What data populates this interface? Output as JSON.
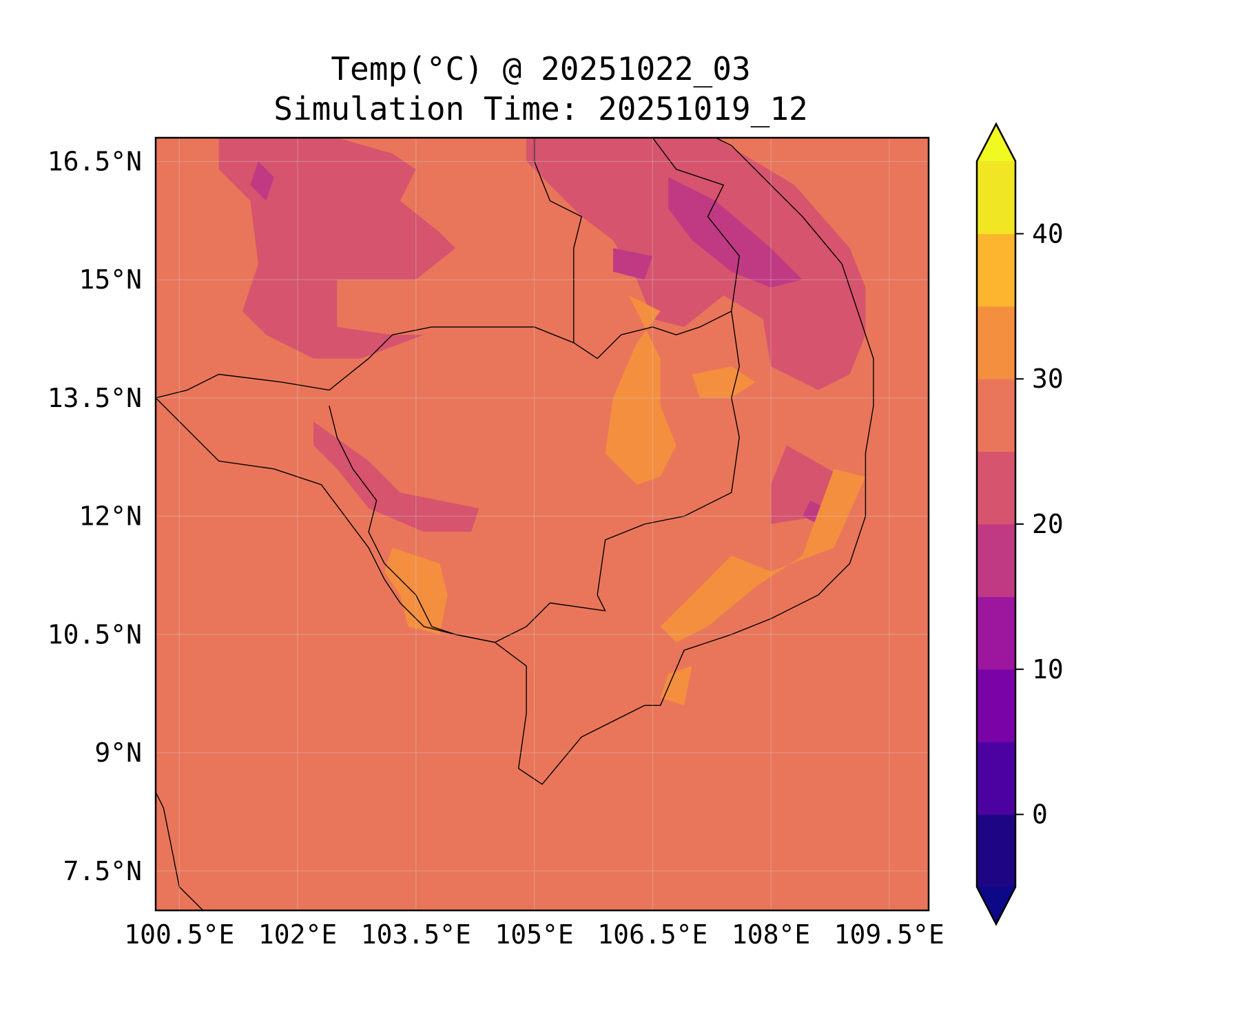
{
  "title": {
    "line1": "Temp(°C) @ 20251022_03",
    "line2": "Simulation Time: 20251019_12"
  },
  "map": {
    "lon_range": [
      100.2,
      110.0
    ],
    "lat_range": [
      7.0,
      16.8
    ],
    "lon_ticks": [
      {
        "value": 100.5,
        "label": "100.5°E"
      },
      {
        "value": 102.0,
        "label": "102°E"
      },
      {
        "value": 103.5,
        "label": "103.5°E"
      },
      {
        "value": 105.0,
        "label": "105°E"
      },
      {
        "value": 106.5,
        "label": "106.5°E"
      },
      {
        "value": 108.0,
        "label": "108°E"
      },
      {
        "value": 109.5,
        "label": "109.5°E"
      }
    ],
    "lat_ticks": [
      {
        "value": 16.5,
        "label": "16.5°N"
      },
      {
        "value": 15.0,
        "label": "15°N"
      },
      {
        "value": 13.5,
        "label": "13.5°N"
      },
      {
        "value": 12.0,
        "label": "12°N"
      },
      {
        "value": 10.5,
        "label": "10.5°N"
      },
      {
        "value": 9.0,
        "label": "9°N"
      },
      {
        "value": 7.5,
        "label": "7.5°N"
      }
    ],
    "background_level_color": "#e9765a",
    "regions": [
      {
        "level": "20-25",
        "color": "#d6546e",
        "points": [
          [
            101.0,
            16.8
          ],
          [
            102.5,
            16.8
          ],
          [
            103.2,
            16.6
          ],
          [
            103.5,
            16.4
          ],
          [
            103.3,
            16.0
          ],
          [
            103.8,
            15.6
          ],
          [
            104.0,
            15.4
          ],
          [
            103.5,
            15.0
          ],
          [
            102.5,
            15.0
          ],
          [
            102.5,
            14.4
          ],
          [
            103.2,
            14.3
          ],
          [
            103.6,
            14.3
          ],
          [
            102.8,
            14.0
          ],
          [
            102.2,
            14.0
          ],
          [
            101.6,
            14.3
          ],
          [
            101.3,
            14.6
          ],
          [
            101.5,
            15.2
          ],
          [
            101.4,
            16.0
          ],
          [
            101.0,
            16.4
          ]
        ]
      },
      {
        "level": "20-25",
        "color": "#d6546e",
        "points": [
          [
            104.9,
            16.8
          ],
          [
            107.3,
            16.8
          ],
          [
            108.3,
            16.2
          ],
          [
            109.0,
            15.4
          ],
          [
            109.2,
            14.9
          ],
          [
            109.2,
            14.3
          ],
          [
            109.0,
            13.8
          ],
          [
            108.6,
            13.6
          ],
          [
            108.0,
            13.9
          ],
          [
            107.9,
            14.5
          ],
          [
            107.4,
            14.8
          ],
          [
            106.9,
            14.4
          ],
          [
            106.5,
            14.5
          ],
          [
            106.3,
            15.0
          ],
          [
            106.0,
            15.5
          ],
          [
            105.6,
            15.8
          ],
          [
            105.2,
            16.2
          ],
          [
            104.9,
            16.5
          ]
        ]
      },
      {
        "level": "20-25",
        "color": "#d6546e",
        "points": [
          [
            102.2,
            13.2
          ],
          [
            102.9,
            12.7
          ],
          [
            103.3,
            12.3
          ],
          [
            104.3,
            12.1
          ],
          [
            104.2,
            11.8
          ],
          [
            103.6,
            11.8
          ],
          [
            102.9,
            12.1
          ],
          [
            102.5,
            12.6
          ],
          [
            102.2,
            12.9
          ]
        ]
      },
      {
        "level": "20-25",
        "color": "#d6546e",
        "points": [
          [
            108.2,
            12.9
          ],
          [
            108.9,
            12.5
          ],
          [
            108.6,
            12.0
          ],
          [
            108.0,
            11.9
          ],
          [
            108.0,
            12.4
          ]
        ]
      },
      {
        "level": "15-20",
        "color": "#c03a83",
        "points": [
          [
            106.7,
            16.3
          ],
          [
            107.3,
            16.0
          ],
          [
            108.0,
            15.4
          ],
          [
            108.4,
            15.0
          ],
          [
            108.0,
            14.9
          ],
          [
            107.5,
            15.1
          ],
          [
            107.0,
            15.5
          ],
          [
            106.7,
            15.9
          ]
        ]
      },
      {
        "level": "15-20",
        "color": "#c03a83",
        "points": [
          [
            101.5,
            16.5
          ],
          [
            101.7,
            16.3
          ],
          [
            101.6,
            16.0
          ],
          [
            101.4,
            16.2
          ]
        ]
      },
      {
        "level": "15-20",
        "color": "#c03a83",
        "points": [
          [
            106.0,
            15.4
          ],
          [
            106.5,
            15.3
          ],
          [
            106.4,
            15.0
          ],
          [
            106.0,
            15.1
          ]
        ]
      },
      {
        "level": "15-20",
        "color": "#c03a83",
        "points": [
          [
            108.5,
            12.2
          ],
          [
            108.7,
            12.1
          ],
          [
            108.6,
            11.9
          ],
          [
            108.4,
            12.0
          ]
        ]
      },
      {
        "level": "30-35",
        "color": "#f48f3f",
        "points": [
          [
            106.2,
            14.8
          ],
          [
            106.6,
            14.6
          ],
          [
            106.3,
            14.2
          ],
          [
            106.0,
            13.5
          ],
          [
            105.9,
            12.8
          ],
          [
            106.3,
            12.4
          ],
          [
            106.6,
            12.5
          ],
          [
            106.8,
            12.9
          ],
          [
            106.6,
            13.4
          ],
          [
            106.6,
            14.0
          ]
        ]
      },
      {
        "level": "30-35",
        "color": "#f48f3f",
        "points": [
          [
            103.2,
            11.6
          ],
          [
            103.8,
            11.4
          ],
          [
            103.9,
            11.0
          ],
          [
            103.8,
            10.5
          ],
          [
            103.4,
            10.6
          ],
          [
            103.3,
            11.0
          ],
          [
            103.1,
            11.3
          ]
        ]
      },
      {
        "level": "30-35",
        "color": "#f48f3f",
        "points": [
          [
            107.5,
            11.5
          ],
          [
            108.0,
            11.3
          ],
          [
            108.8,
            11.6
          ],
          [
            109.2,
            12.5
          ],
          [
            108.8,
            12.6
          ],
          [
            108.4,
            11.5
          ],
          [
            107.8,
            11.1
          ],
          [
            107.2,
            10.6
          ],
          [
            106.8,
            10.4
          ],
          [
            106.6,
            10.6
          ],
          [
            107.0,
            11.0
          ]
        ]
      },
      {
        "level": "30-35",
        "color": "#f48f3f",
        "points": [
          [
            107.0,
            13.8
          ],
          [
            107.5,
            13.9
          ],
          [
            107.8,
            13.7
          ],
          [
            107.5,
            13.5
          ],
          [
            107.1,
            13.5
          ]
        ]
      },
      {
        "level": "30-35",
        "color": "#f48f3f",
        "points": [
          [
            106.7,
            10.0
          ],
          [
            107.0,
            10.1
          ],
          [
            106.9,
            9.6
          ],
          [
            106.6,
            9.7
          ]
        ]
      }
    ],
    "land_outlines": [
      {
        "name": "cambodia",
        "points": [
          [
            102.4,
            13.6
          ],
          [
            102.9,
            14.0
          ],
          [
            103.2,
            14.3
          ],
          [
            103.7,
            14.4
          ],
          [
            104.4,
            14.4
          ],
          [
            105.0,
            14.4
          ],
          [
            105.5,
            14.2
          ],
          [
            105.8,
            14.0
          ],
          [
            106.1,
            14.3
          ],
          [
            106.5,
            14.4
          ],
          [
            106.8,
            14.3
          ],
          [
            107.1,
            14.4
          ],
          [
            107.5,
            14.6
          ],
          [
            107.6,
            13.9
          ],
          [
            107.5,
            13.5
          ],
          [
            107.6,
            13.0
          ],
          [
            107.5,
            12.3
          ],
          [
            106.9,
            12.0
          ],
          [
            106.4,
            11.9
          ],
          [
            105.9,
            11.7
          ],
          [
            105.8,
            11.0
          ],
          [
            105.9,
            10.8
          ],
          [
            105.2,
            10.9
          ],
          [
            104.9,
            10.6
          ],
          [
            104.5,
            10.4
          ],
          [
            104.0,
            10.5
          ],
          [
            103.7,
            10.6
          ],
          [
            103.5,
            11.0
          ],
          [
            103.1,
            11.4
          ],
          [
            102.9,
            11.8
          ],
          [
            103.0,
            12.2
          ],
          [
            102.7,
            12.6
          ],
          [
            102.5,
            13.0
          ],
          [
            102.4,
            13.4
          ]
        ]
      },
      {
        "name": "laos-thailand",
        "points": [
          [
            102.4,
            13.6
          ],
          [
            101.8,
            13.7
          ],
          [
            101.0,
            13.8
          ],
          [
            100.6,
            13.6
          ],
          [
            100.2,
            13.5
          ]
        ]
      },
      {
        "name": "laos-cambodia-vietnam",
        "points": [
          [
            105.0,
            16.8
          ],
          [
            105.0,
            16.5
          ],
          [
            105.2,
            16.0
          ],
          [
            105.6,
            15.8
          ],
          [
            105.5,
            15.4
          ],
          [
            105.5,
            14.8
          ],
          [
            105.5,
            14.2
          ]
        ]
      },
      {
        "name": "laos-vietnam",
        "points": [
          [
            106.5,
            16.8
          ],
          [
            106.8,
            16.4
          ],
          [
            107.4,
            16.2
          ],
          [
            107.2,
            15.8
          ],
          [
            107.6,
            15.3
          ],
          [
            107.5,
            14.6
          ]
        ]
      },
      {
        "name": "gulf-coast",
        "points": [
          [
            100.2,
            13.5
          ],
          [
            101.0,
            12.7
          ],
          [
            101.7,
            12.6
          ],
          [
            102.3,
            12.4
          ],
          [
            102.6,
            12.0
          ],
          [
            102.9,
            11.6
          ],
          [
            103.1,
            11.2
          ],
          [
            103.3,
            10.9
          ],
          [
            103.6,
            10.6
          ],
          [
            104.0,
            10.5
          ],
          [
            104.5,
            10.4
          ],
          [
            104.9,
            10.1
          ],
          [
            104.9,
            9.5
          ],
          [
            104.8,
            8.8
          ],
          [
            105.1,
            8.6
          ],
          [
            105.6,
            9.2
          ],
          [
            106.4,
            9.6
          ],
          [
            106.6,
            9.6
          ],
          [
            106.9,
            10.3
          ],
          [
            107.5,
            10.5
          ],
          [
            108.0,
            10.7
          ],
          [
            108.6,
            11.0
          ],
          [
            109.0,
            11.4
          ],
          [
            109.2,
            12.0
          ],
          [
            109.2,
            12.8
          ],
          [
            109.3,
            13.4
          ],
          [
            109.3,
            14.0
          ],
          [
            109.1,
            14.6
          ],
          [
            108.9,
            15.2
          ],
          [
            108.4,
            15.8
          ],
          [
            108.0,
            16.2
          ],
          [
            107.5,
            16.7
          ],
          [
            107.3,
            16.8
          ]
        ]
      },
      {
        "name": "malay-peninsula",
        "points": [
          [
            100.2,
            8.5
          ],
          [
            100.3,
            8.3
          ],
          [
            100.4,
            7.8
          ],
          [
            100.5,
            7.3
          ],
          [
            100.8,
            7.0
          ]
        ]
      }
    ]
  },
  "colorbar": {
    "levels": [
      -5,
      0,
      5,
      10,
      15,
      20,
      25,
      30,
      35,
      40,
      45
    ],
    "colors": [
      "#1d0583",
      "#4c02a1",
      "#7a03a8",
      "#9c179e",
      "#c03a83",
      "#d6546e",
      "#e9765a",
      "#f48f3f",
      "#fdb42f",
      "#f0e624"
    ],
    "under_color": "#0d0887",
    "over_color": "#f0f921",
    "ticks": [
      {
        "value": 0,
        "label": "0"
      },
      {
        "value": 10,
        "label": "10"
      },
      {
        "value": 20,
        "label": "20"
      },
      {
        "value": 30,
        "label": "30"
      },
      {
        "value": 40,
        "label": "40"
      }
    ]
  }
}
